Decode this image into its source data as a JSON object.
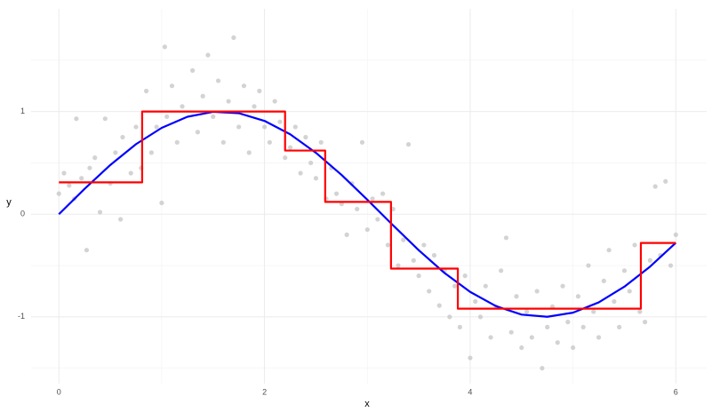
{
  "chart_data": {
    "type": "line",
    "x_label": "x",
    "y_label": "y",
    "xlim": [
      -0.27,
      6.3
    ],
    "ylim": [
      -1.65,
      2.0
    ],
    "xticks": [
      0,
      2,
      4,
      6
    ],
    "yticks": [
      -1,
      0,
      1
    ],
    "grid": true,
    "series": [
      {
        "type": "scatter",
        "color": "#c4c4c4",
        "x": [
          0.0,
          0.05,
          0.1,
          0.15,
          0.17,
          0.22,
          0.27,
          0.3,
          0.35,
          0.4,
          0.45,
          0.5,
          0.55,
          0.6,
          0.62,
          0.7,
          0.75,
          0.8,
          0.85,
          0.9,
          0.95,
          1.0,
          1.03,
          1.05,
          1.1,
          1.15,
          1.2,
          1.3,
          1.35,
          1.4,
          1.45,
          1.5,
          1.55,
          1.6,
          1.65,
          1.7,
          1.75,
          1.8,
          1.85,
          1.9,
          1.95,
          2.0,
          2.05,
          2.1,
          2.15,
          2.2,
          2.25,
          2.3,
          2.35,
          2.4,
          2.45,
          2.5,
          2.55,
          2.6,
          2.65,
          2.7,
          2.75,
          2.8,
          2.85,
          2.9,
          2.95,
          3.0,
          3.05,
          3.1,
          3.15,
          3.2,
          3.25,
          3.3,
          3.35,
          3.4,
          3.45,
          3.5,
          3.55,
          3.6,
          3.65,
          3.7,
          3.75,
          3.8,
          3.85,
          3.9,
          3.95,
          4.0,
          4.05,
          4.1,
          4.15,
          4.2,
          4.25,
          4.3,
          4.35,
          4.4,
          4.45,
          4.5,
          4.55,
          4.6,
          4.65,
          4.7,
          4.75,
          4.8,
          4.85,
          4.9,
          4.95,
          5.0,
          5.05,
          5.1,
          5.15,
          5.2,
          5.25,
          5.3,
          5.35,
          5.4,
          5.45,
          5.5,
          5.55,
          5.6,
          5.65,
          5.7,
          5.75,
          5.8,
          5.85,
          5.9,
          5.95,
          6.0
        ],
        "values": [
          0.2,
          0.4,
          0.28,
          0.15,
          0.93,
          0.35,
          -0.35,
          0.45,
          0.55,
          0.02,
          0.93,
          0.3,
          0.6,
          -0.05,
          0.75,
          0.4,
          0.85,
          0.45,
          1.2,
          0.6,
          0.85,
          0.11,
          1.63,
          0.95,
          1.25,
          0.7,
          1.05,
          1.4,
          0.8,
          1.15,
          1.55,
          0.95,
          1.3,
          0.7,
          1.1,
          1.72,
          0.85,
          1.25,
          0.6,
          1.05,
          1.2,
          0.85,
          0.7,
          1.1,
          0.9,
          0.55,
          0.65,
          0.85,
          0.4,
          0.75,
          0.5,
          0.35,
          0.7,
          0.15,
          0.45,
          0.2,
          0.1,
          -0.2,
          0.3,
          0.05,
          0.7,
          -0.15,
          0.15,
          -0.05,
          0.2,
          -0.3,
          0.05,
          -0.5,
          -0.25,
          0.68,
          -0.45,
          -0.6,
          -0.3,
          -0.75,
          -0.4,
          -0.89,
          -0.55,
          -1.0,
          -0.7,
          -1.1,
          -0.6,
          -1.4,
          -0.85,
          -1.0,
          -0.7,
          -1.2,
          -0.9,
          -0.55,
          -0.23,
          -1.15,
          -0.8,
          -1.3,
          -0.95,
          -1.2,
          -0.75,
          -1.5,
          -1.1,
          -0.9,
          -1.25,
          -0.7,
          -1.05,
          -1.3,
          -0.8,
          -1.1,
          -0.5,
          -0.95,
          -1.2,
          -0.65,
          -0.35,
          -0.85,
          -1.1,
          -0.55,
          -0.75,
          -0.3,
          -0.95,
          -1.05,
          -0.45,
          0.27,
          -0.4,
          0.32,
          -0.5,
          -0.2
        ]
      },
      {
        "type": "line",
        "color": "#0000ff",
        "x": [
          0,
          0.25,
          0.5,
          0.75,
          1,
          1.25,
          1.5,
          1.75,
          2,
          2.25,
          2.5,
          2.75,
          3,
          3.25,
          3.5,
          3.75,
          4,
          4.25,
          4.5,
          4.75,
          5,
          5.25,
          5.5,
          5.75,
          6
        ],
        "values": [
          0,
          0.247,
          0.479,
          0.682,
          0.841,
          0.949,
          0.997,
          0.984,
          0.909,
          0.778,
          0.598,
          0.382,
          0.141,
          -0.108,
          -0.351,
          -0.572,
          -0.757,
          -0.895,
          -0.978,
          -0.999,
          -0.959,
          -0.859,
          -0.706,
          -0.51,
          -0.279
        ]
      },
      {
        "type": "line",
        "color": "#ff0000",
        "x": [
          0,
          0.81,
          0.81,
          2.2,
          2.2,
          2.59,
          2.59,
          3.23,
          3.23,
          3.88,
          3.88,
          5.66,
          5.66,
          6
        ],
        "values": [
          0.31,
          0.31,
          1.0,
          1.0,
          0.62,
          0.62,
          0.12,
          0.12,
          -0.53,
          -0.53,
          -0.92,
          -0.92,
          -0.28,
          -0.28
        ]
      }
    ]
  }
}
